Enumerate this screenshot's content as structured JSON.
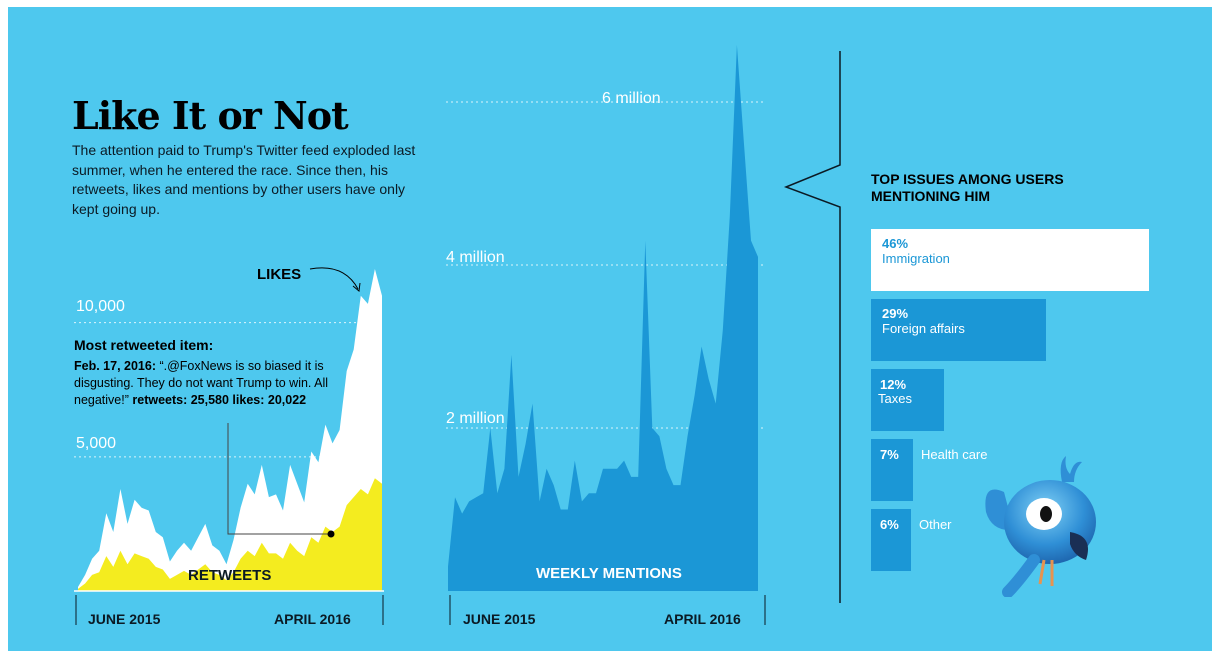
{
  "header": {
    "title": "Like It or Not",
    "intro": "The attention paid to Trump's Twitter feed exploded last summer, when he entered the race. Since then, his retweets, likes and mentions by other users have only kept going up."
  },
  "left_chart": {
    "ticks": [
      "10,000",
      "5,000"
    ],
    "likes_label": "LIKES",
    "retweets_label": "RETWEETS",
    "x_start": "JUNE 2015",
    "x_end": "APRIL 2016",
    "note_title": "Most retweeted item:",
    "note_date": "Feb. 17, 2016:",
    "note_quote": " “.@FoxNews is so biased it is disgusting. They do not want Trump to win. All negative!” ",
    "note_stats": "retweets: 25,580  likes: 20,022"
  },
  "middle_chart": {
    "ticks": [
      "6 million",
      "4 million",
      "2 million"
    ],
    "series_label": "WEEKLY MENTIONS",
    "x_start": "JUNE 2015",
    "x_end": "APRIL 2016"
  },
  "issues": {
    "title": "TOP ISSUES AMONG USERS MENTIONING HIM",
    "items": [
      {
        "pct": "46%",
        "label": "Immigration",
        "value": 46
      },
      {
        "pct": "29%",
        "label": "Foreign affairs",
        "value": 29
      },
      {
        "pct": "12%",
        "label": "Taxes",
        "value": 12
      },
      {
        "pct": "7%",
        "label": "Health care",
        "value": 7
      },
      {
        "pct": "6%",
        "label": "Other",
        "value": 6
      }
    ]
  },
  "colors": {
    "background": "#4ec8ee",
    "likes": "#ffffff",
    "retweets": "#f4ec1f",
    "mentions": "#1b97d6",
    "bars": "#1b97d6",
    "top_bar": "#ffffff"
  },
  "chart_data": [
    {
      "type": "area",
      "title": "",
      "x_range": [
        "JUNE 2015",
        "APRIL 2016"
      ],
      "ylim": [
        0,
        12000
      ],
      "y_ticks": [
        5000,
        10000
      ],
      "series": [
        {
          "name": "LIKES",
          "values": [
            150,
            600,
            1200,
            1500,
            2900,
            2200,
            3800,
            2500,
            3400,
            3100,
            3000,
            2200,
            2000,
            1100,
            1500,
            1800,
            1500,
            2000,
            2500,
            1700,
            1500,
            1000,
            1900,
            3100,
            4000,
            3600,
            4700,
            3500,
            3600,
            3000,
            4700,
            4000,
            3300,
            5200,
            4800,
            6200,
            5500,
            6000,
            8200,
            9000,
            11000,
            10700,
            12000,
            11000
          ]
        },
        {
          "name": "RETWEETS",
          "values": [
            80,
            280,
            600,
            700,
            1300,
            900,
            1500,
            1000,
            1400,
            1300,
            1200,
            900,
            800,
            450,
            600,
            750,
            600,
            800,
            1000,
            700,
            600,
            400,
            700,
            1200,
            1500,
            1300,
            1800,
            1400,
            1400,
            1200,
            1800,
            1500,
            1300,
            2000,
            1800,
            2400,
            2200,
            2400,
            3200,
            3500,
            3800,
            3600,
            4200,
            4000
          ]
        }
      ],
      "annotation": "Most retweeted item: Feb. 17, 2016"
    },
    {
      "type": "area",
      "title": "",
      "x_range": [
        "JUNE 2015",
        "APRIL 2016"
      ],
      "ylim": [
        0,
        6700000
      ],
      "y_ticks": [
        2000000,
        4000000,
        6000000
      ],
      "series": [
        {
          "name": "WEEKLY MENTIONS",
          "values": [
            300000,
            1150000,
            950000,
            1100000,
            1150000,
            1200000,
            2000000,
            1200000,
            1500000,
            2900000,
            1400000,
            1800000,
            2300000,
            1100000,
            1500000,
            1300000,
            1000000,
            1000000,
            1600000,
            1100000,
            1200000,
            1200000,
            1500000,
            1500000,
            1500000,
            1600000,
            1400000,
            1400000,
            4300000,
            2000000,
            1900000,
            1500000,
            1300000,
            1300000,
            1900000,
            2400000,
            3000000,
            2600000,
            2300000,
            3200000,
            4600000,
            6700000,
            5500000,
            4300000,
            4100000
          ]
        }
      ]
    },
    {
      "type": "bar",
      "title": "TOP ISSUES AMONG USERS MENTIONING HIM",
      "categories": [
        "Immigration",
        "Foreign affairs",
        "Taxes",
        "Health care",
        "Other"
      ],
      "values": [
        46,
        29,
        12,
        7,
        6
      ],
      "unit": "%"
    }
  ]
}
